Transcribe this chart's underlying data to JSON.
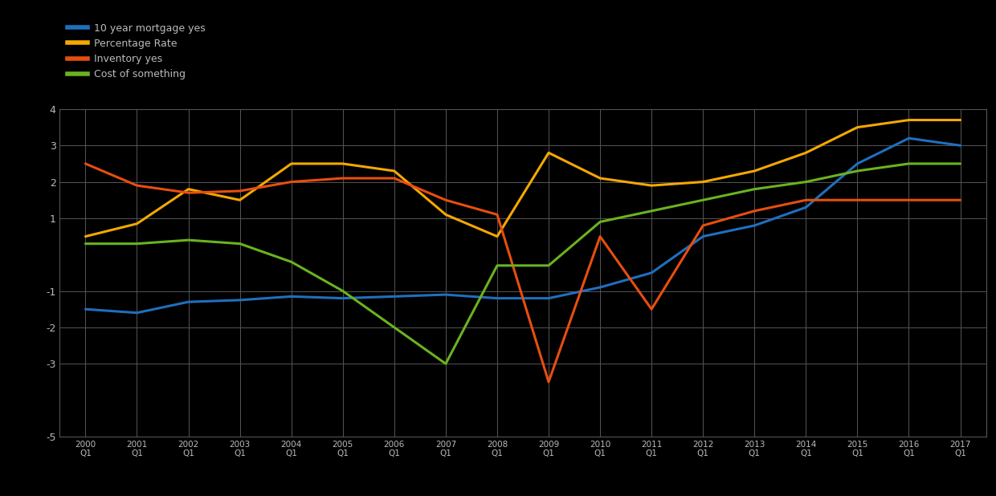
{
  "legend": [
    "10 year mortgage yes",
    "Percentage Rate",
    "Inventory yes",
    "Cost of something"
  ],
  "colors": [
    "#1f6fbf",
    "#f5a800",
    "#e84e0f",
    "#6ab320"
  ],
  "x_labels": [
    "2000\nQ1",
    "2001\nQ1",
    "2002\nQ1",
    "2003\nQ1",
    "2004\nQ1",
    "2005\nQ1",
    "2006\nQ1",
    "2007\nQ1",
    "2008\nQ1",
    "2009\nQ1",
    "2010\nQ1",
    "2011\nQ1",
    "2012\nQ1",
    "2013\nQ1",
    "2014\nQ1",
    "2015\nQ1",
    "2016\nQ1",
    "2017\nQ1"
  ],
  "series_blue": [
    -1.5,
    -1.6,
    -1.3,
    -1.25,
    -1.15,
    -1.2,
    -1.15,
    -1.1,
    -1.2,
    -1.2,
    -0.9,
    -0.5,
    0.5,
    0.8,
    1.3,
    2.5,
    3.2,
    3.0
  ],
  "series_yellow": [
    0.5,
    0.85,
    1.8,
    1.5,
    2.5,
    2.5,
    2.3,
    1.1,
    0.5,
    2.8,
    2.1,
    1.9,
    2.0,
    2.3,
    2.8,
    3.5,
    3.7,
    3.7
  ],
  "series_orange": [
    2.5,
    1.9,
    1.7,
    1.75,
    2.0,
    2.1,
    2.1,
    1.5,
    1.1,
    -3.5,
    0.5,
    -1.5,
    0.8,
    1.2,
    1.5,
    1.5,
    1.5,
    1.5
  ],
  "series_green": [
    0.3,
    0.3,
    0.4,
    0.3,
    -0.2,
    -1.0,
    -2.0,
    -3.0,
    -0.3,
    -0.3,
    0.9,
    1.2,
    1.5,
    1.8,
    2.0,
    2.3,
    2.5,
    2.5
  ],
  "ylim": [
    -5,
    4
  ],
  "yticks": [
    4,
    3,
    2,
    1,
    -1,
    -2,
    -3,
    -5
  ],
  "background_color": "#000000",
  "grid_color": "#555555",
  "text_color": "#bbbbbb",
  "line_width": 2.2
}
